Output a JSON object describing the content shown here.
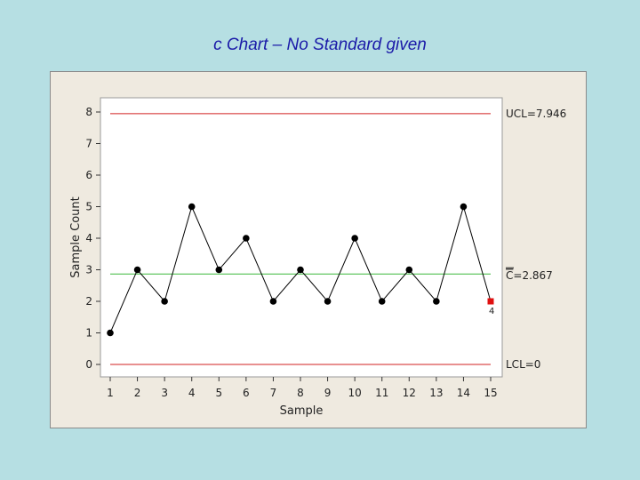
{
  "slide": {
    "title": "c Chart – No Standard given"
  },
  "chart_data": {
    "type": "line",
    "xlabel": "Sample",
    "ylabel": "Sample Count",
    "x": [
      1,
      2,
      3,
      4,
      5,
      6,
      7,
      8,
      9,
      10,
      11,
      12,
      13,
      14,
      15
    ],
    "values": [
      1,
      3,
      2,
      5,
      3,
      4,
      2,
      3,
      2,
      4,
      2,
      3,
      2,
      5,
      2
    ],
    "yticks": [
      0,
      1,
      2,
      3,
      4,
      5,
      6,
      7,
      8
    ],
    "ylim": [
      0,
      8
    ],
    "xlim": [
      1,
      15
    ],
    "grid": false,
    "limits": {
      "ucl": {
        "value": 7.946,
        "label": "UCL=7.946",
        "color": "#d22020"
      },
      "center": {
        "value": 2.867,
        "label_prefix": "C",
        "label_value": "=2.867",
        "color": "#3cb83c"
      },
      "lcl": {
        "value": 0,
        "label": "LCL=0",
        "color": "#d22020"
      }
    },
    "flagged": [
      {
        "x": 15,
        "test": "4",
        "color": "#e01010"
      }
    ],
    "colors": {
      "line": "#000000",
      "point": "#000000",
      "background": "#ffffff"
    }
  }
}
